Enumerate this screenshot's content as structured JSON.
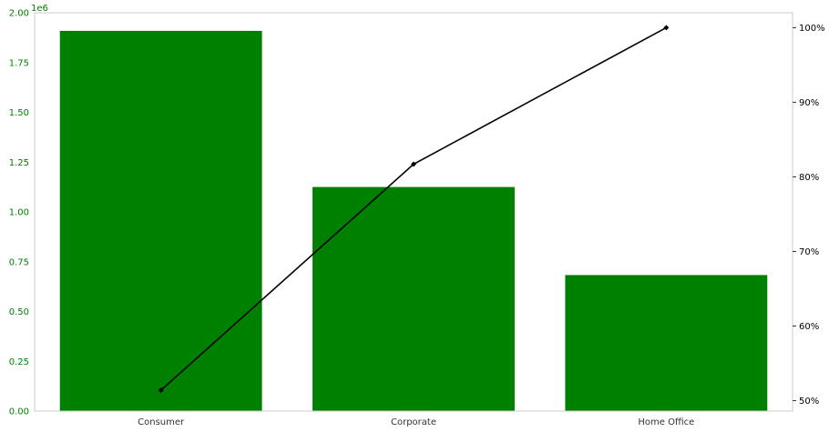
{
  "chart_data": {
    "type": "bar",
    "categories": [
      "Consumer",
      "Corporate",
      "Home Office"
    ],
    "series": [
      {
        "values": [
          1909000,
          1125000,
          683000
        ],
        "color": "#008000",
        "axis": "left"
      },
      {
        "values": [
          51.4,
          81.7,
          100
        ],
        "color": "#000000",
        "axis": "right",
        "kind": "line",
        "marker": "diamond"
      }
    ],
    "ylim_left": [
      0,
      2000000
    ],
    "ylim_right": [
      48.6,
      102
    ],
    "left_ticks": [
      "0.00",
      "0.25",
      "0.50",
      "0.75",
      "1.00",
      "1.25",
      "1.50",
      "1.75",
      "2.00"
    ],
    "left_tick_values": [
      0,
      250000,
      500000,
      750000,
      1000000,
      1250000,
      1500000,
      1750000,
      2000000
    ],
    "left_offset_label": "1e6",
    "right_ticks": [
      "50%",
      "60%",
      "70%",
      "80%",
      "90%",
      "100%"
    ],
    "right_tick_values": [
      50,
      60,
      70,
      80,
      90,
      100
    ],
    "grid": false,
    "colors": {
      "bar": "#008000",
      "line": "#000000",
      "left_axis_text": "#008000",
      "frame": "#cccccc"
    }
  }
}
